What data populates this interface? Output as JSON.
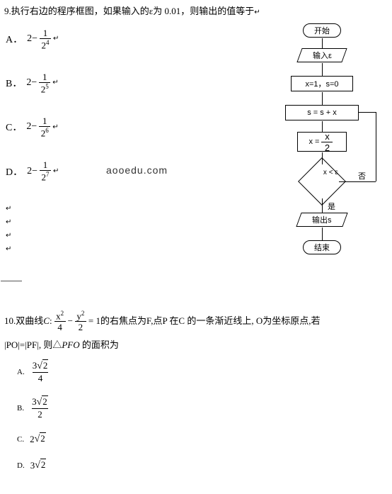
{
  "q9": {
    "number": "9.",
    "stem": "执行右边的程序框图，如果输入的ε为 0.01，则输出的值等于",
    "marker": "↵",
    "options": [
      {
        "label": "A．",
        "expr_prefix": "2−",
        "num": "1",
        "den_base": "2",
        "den_exp": "4"
      },
      {
        "label": "B．",
        "expr_prefix": "2−",
        "num": "1",
        "den_base": "2",
        "den_exp": "5"
      },
      {
        "label": "C．",
        "expr_prefix": "2−",
        "num": "1",
        "den_base": "2",
        "den_exp": "6"
      },
      {
        "label": "D．",
        "expr_prefix": "2−",
        "num": "1",
        "den_base": "2",
        "den_exp": "7"
      }
    ],
    "watermark": "aooedu.com"
  },
  "flowchart": {
    "nodes": {
      "start": "开始",
      "input": "输入ε",
      "init": "x=1，s=0",
      "sum": "s = s + x",
      "halve_top": "x = ",
      "halve_num": "x",
      "halve_den": "2",
      "cond": "x < ε",
      "output": "输出s",
      "end": "结束"
    },
    "labels": {
      "no": "否",
      "yes": "是"
    }
  },
  "q10": {
    "number": "10.",
    "stem_a": "双曲线",
    "curve_name": "C",
    "colon": ":",
    "frac1_num_base": "x",
    "frac1_num_exp": "2",
    "frac1_den": "4",
    "minus": "−",
    "frac2_num_base": "y",
    "frac2_num_exp": "2",
    "frac2_den": "2",
    "eq": " = 1",
    "stem_b": "的右焦点为F,点P 在C 的一条渐近线上, O为坐标原点,若",
    "line2_a": "|PO|=|PF|, 则△",
    "line2_tri": "PFO",
    "line2_b": " 的面积为",
    "options": [
      {
        "label": "A.",
        "type": "frac",
        "coef": "3",
        "rad": "2",
        "den": "4"
      },
      {
        "label": "B.",
        "type": "frac",
        "coef": "3",
        "rad": "2",
        "den": "2"
      },
      {
        "label": "C.",
        "type": "plain",
        "coef": "2",
        "rad": "2"
      },
      {
        "label": "D.",
        "type": "plain",
        "coef": "3",
        "rad": "2"
      }
    ]
  }
}
